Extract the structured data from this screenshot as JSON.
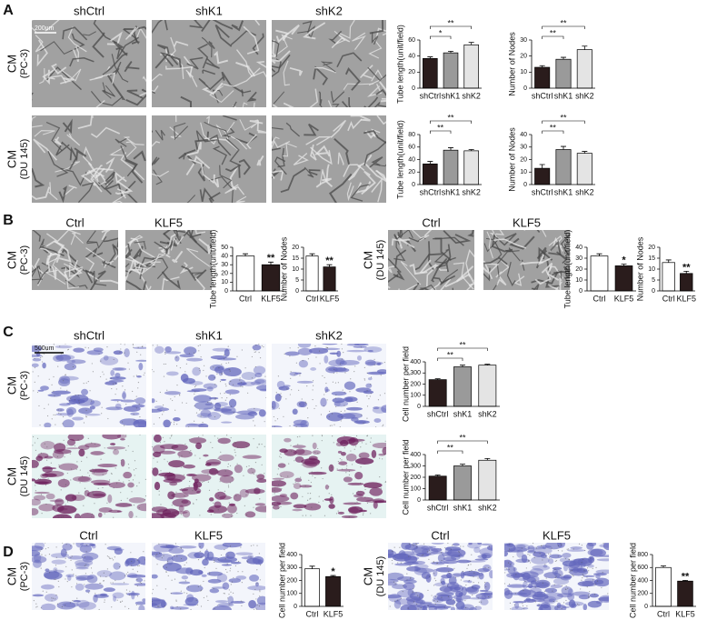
{
  "figure": {
    "A": {
      "label": "A",
      "columns": [
        "shCtrl",
        "shK1",
        "shK2"
      ],
      "scale_bar": "200um",
      "rows": [
        {
          "cm": "CM",
          "line": "(PC-3)"
        },
        {
          "cm": "CM",
          "line": "(DU 145)"
        }
      ]
    },
    "B": {
      "label": "B",
      "groups": [
        {
          "columns": [
            "Ctrl",
            "KLF5"
          ],
          "row": {
            "cm": "CM",
            "line": "(PC-3)"
          }
        },
        {
          "columns": [
            "Ctrl",
            "KLF5"
          ],
          "row": {
            "cm": "CM",
            "line": "(DU 145)"
          }
        }
      ]
    },
    "C": {
      "label": "C",
      "columns": [
        "shCtrl",
        "shK1",
        "shK2"
      ],
      "scale_bar": "500um",
      "rows": [
        {
          "cm": "CM",
          "line": "(PC-3)"
        },
        {
          "cm": "CM",
          "line": "(DU 145)"
        }
      ]
    },
    "D": {
      "label": "D",
      "groups": [
        {
          "columns": [
            "Ctrl",
            "KLF5"
          ],
          "row": {
            "cm": "CM",
            "line": "(PC-3)"
          }
        },
        {
          "columns": [
            "Ctrl",
            "KLF5"
          ],
          "row": {
            "cm": "CM",
            "line": "(DU 145)"
          }
        }
      ]
    }
  },
  "chart_data": [
    {
      "type": "bar",
      "ylabel": "Tube length(unit/field)",
      "categories": [
        "shCtrl",
        "shK1",
        "shK2"
      ],
      "values": [
        37,
        44,
        54
      ],
      "errors": [
        2,
        2,
        3
      ],
      "colors": [
        "#2a1c1c",
        "#9a9a9a",
        "#e4e4e4"
      ],
      "ylim": [
        0,
        60
      ],
      "yticks": [
        0,
        20,
        40,
        60
      ],
      "brackets": [
        {
          "label": "*",
          "pair": [
            "shCtrl",
            "shK1"
          ]
        },
        {
          "label": "**",
          "pair": [
            "shCtrl",
            "shK2"
          ]
        }
      ]
    },
    {
      "type": "bar",
      "ylabel": "Number of Nodes",
      "categories": [
        "shCtrl",
        "shK1",
        "shK2"
      ],
      "values": [
        13,
        18,
        24
      ],
      "errors": [
        1,
        1.2,
        2.2
      ],
      "colors": [
        "#2a1c1c",
        "#9a9a9a",
        "#e4e4e4"
      ],
      "ylim": [
        0,
        30
      ],
      "yticks": [
        0,
        10,
        20,
        30
      ],
      "brackets": [
        {
          "label": "**",
          "pair": [
            "shCtrl",
            "shK1"
          ]
        },
        {
          "label": "**",
          "pair": [
            "shCtrl",
            "shK2"
          ]
        }
      ]
    },
    {
      "type": "bar",
      "ylabel": "Tube length(unit/field)",
      "categories": [
        "shCtrl",
        "shK1",
        "shK2"
      ],
      "values": [
        33,
        55,
        54
      ],
      "errors": [
        4,
        4,
        2
      ],
      "colors": [
        "#2a1c1c",
        "#9a9a9a",
        "#e4e4e4"
      ],
      "ylim": [
        0,
        80
      ],
      "yticks": [
        0,
        20,
        40,
        60,
        80
      ],
      "brackets": [
        {
          "label": "**",
          "pair": [
            "shCtrl",
            "shK1"
          ]
        },
        {
          "label": "**",
          "pair": [
            "shCtrl",
            "shK2"
          ]
        }
      ]
    },
    {
      "type": "bar",
      "ylabel": "Number of Nodes",
      "categories": [
        "shCtrl",
        "shK1",
        "shK2"
      ],
      "values": [
        13,
        28,
        25
      ],
      "errors": [
        3,
        2.5,
        1.5
      ],
      "colors": [
        "#2a1c1c",
        "#9a9a9a",
        "#e4e4e4"
      ],
      "ylim": [
        0,
        40
      ],
      "yticks": [
        0,
        10,
        20,
        30,
        40
      ],
      "brackets": [
        {
          "label": "**",
          "pair": [
            "shCtrl",
            "shK1"
          ]
        },
        {
          "label": "**",
          "pair": [
            "shCtrl",
            "shK2"
          ]
        }
      ]
    },
    {
      "type": "bar",
      "ylabel": "Tube length(unit/field)",
      "categories": [
        "Ctrl",
        "KLF5"
      ],
      "values": [
        40,
        30
      ],
      "errors": [
        2.5,
        3
      ],
      "colors": [
        "#ffffff",
        "#2a1c1c"
      ],
      "ylim": [
        0,
        50
      ],
      "yticks": [
        0,
        10,
        20,
        30,
        40,
        50
      ],
      "bar_labels": [
        null,
        "**"
      ]
    },
    {
      "type": "bar",
      "ylabel": "Number of Nodes",
      "categories": [
        "Ctrl",
        "KLF5"
      ],
      "values": [
        16,
        11
      ],
      "errors": [
        1,
        1
      ],
      "colors": [
        "#ffffff",
        "#2a1c1c"
      ],
      "ylim": [
        0,
        20
      ],
      "yticks": [
        0,
        5,
        10,
        15,
        20
      ],
      "bar_labels": [
        null,
        "**"
      ]
    },
    {
      "type": "bar",
      "ylabel": "Tube length(unit/field)",
      "categories": [
        "Ctrl",
        "KLF5"
      ],
      "values": [
        32,
        23
      ],
      "errors": [
        2,
        1.5
      ],
      "colors": [
        "#ffffff",
        "#2a1c1c"
      ],
      "ylim": [
        0,
        40
      ],
      "yticks": [
        0,
        10,
        20,
        30,
        40
      ],
      "bar_labels": [
        null,
        "*"
      ]
    },
    {
      "type": "bar",
      "ylabel": "Number of Nodes",
      "categories": [
        "Ctrl",
        "KLF5"
      ],
      "values": [
        13,
        8
      ],
      "errors": [
        1.2,
        1
      ],
      "colors": [
        "#ffffff",
        "#2a1c1c"
      ],
      "ylim": [
        0,
        20
      ],
      "yticks": [
        0,
        5,
        10,
        15,
        20
      ],
      "bar_labels": [
        null,
        "**"
      ]
    },
    {
      "type": "bar",
      "ylabel": "Cell number per field",
      "categories": [
        "shCtrl",
        "shK1",
        "shK2"
      ],
      "values": [
        240,
        355,
        370
      ],
      "errors": [
        8,
        15,
        8
      ],
      "colors": [
        "#2a1c1c",
        "#9a9a9a",
        "#e4e4e4"
      ],
      "ylim": [
        0,
        400
      ],
      "yticks": [
        0,
        100,
        200,
        300,
        400
      ],
      "brackets": [
        {
          "label": "**",
          "pair": [
            "shCtrl",
            "shK1"
          ]
        },
        {
          "label": "**",
          "pair": [
            "shCtrl",
            "shK2"
          ]
        }
      ]
    },
    {
      "type": "bar",
      "ylabel": "Cell number per field",
      "categories": [
        "shCtrl",
        "shK1",
        "shK2"
      ],
      "values": [
        210,
        300,
        350
      ],
      "errors": [
        10,
        15,
        15
      ],
      "colors": [
        "#2a1c1c",
        "#9a9a9a",
        "#e4e4e4"
      ],
      "ylim": [
        0,
        400
      ],
      "yticks": [
        0,
        100,
        200,
        300,
        400
      ],
      "brackets": [
        {
          "label": "**",
          "pair": [
            "shCtrl",
            "shK1"
          ]
        },
        {
          "label": "**",
          "pair": [
            "shCtrl",
            "shK2"
          ]
        }
      ]
    },
    {
      "type": "bar",
      "ylabel": "Cell number per field",
      "categories": [
        "Ctrl",
        "KLF5"
      ],
      "values": [
        290,
        230
      ],
      "errors": [
        20,
        8
      ],
      "colors": [
        "#ffffff",
        "#2a1c1c"
      ],
      "ylim": [
        0,
        400
      ],
      "yticks": [
        0,
        100,
        200,
        300,
        400
      ],
      "bar_labels": [
        null,
        "*"
      ]
    },
    {
      "type": "bar",
      "ylabel": "Cell number per field",
      "categories": [
        "Ctrl",
        "KLF5"
      ],
      "values": [
        600,
        390
      ],
      "errors": [
        25,
        12
      ],
      "colors": [
        "#ffffff",
        "#2a1c1c"
      ],
      "ylim": [
        0,
        800
      ],
      "yticks": [
        0,
        200,
        400,
        600,
        800
      ],
      "bar_labels": [
        null,
        "**"
      ]
    }
  ]
}
